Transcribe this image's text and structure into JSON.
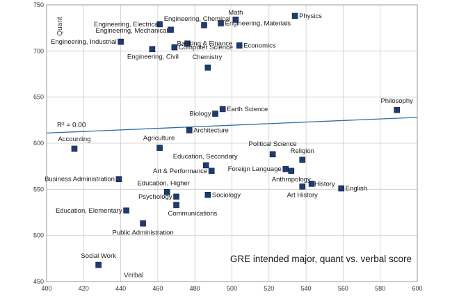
{
  "chart_data": {
    "type": "scatter",
    "title": "GRE intended major, quant vs. verbal score",
    "xlabel": "Verbal",
    "ylabel": "Quant",
    "xlim": [
      400,
      600
    ],
    "ylim": [
      450,
      750
    ],
    "xticks": [
      400,
      420,
      440,
      460,
      480,
      500,
      520,
      540,
      560,
      580,
      600
    ],
    "yticks": [
      450,
      500,
      550,
      600,
      650,
      700,
      750
    ],
    "grid": true,
    "trendline": {
      "label": "R² = 0.00",
      "y_at_xmin": 611,
      "y_at_xmax": 628
    },
    "colors": {
      "marker": "#1f3b70",
      "trend": "#2e6da4",
      "grid": "#cccccc"
    },
    "points": [
      {
        "name": "Physics",
        "x": 534,
        "y": 738
      },
      {
        "name": "Math",
        "x": 502,
        "y": 734
      },
      {
        "name": "Engineering, Chemical",
        "x": 485,
        "y": 728
      },
      {
        "name": "Engineering, Materials",
        "x": 494,
        "y": 730
      },
      {
        "name": "Engineering, Electrical",
        "x": 461,
        "y": 729
      },
      {
        "name": "Engineering, Mechanical",
        "x": 467,
        "y": 723
      },
      {
        "name": "Banking & Finance",
        "x": 476,
        "y": 708
      },
      {
        "name": "Engineering, Industrial",
        "x": 440,
        "y": 710
      },
      {
        "name": "Computer Science",
        "x": 469,
        "y": 704
      },
      {
        "name": "Economics",
        "x": 504,
        "y": 706
      },
      {
        "name": "Engineering, Civil",
        "x": 457,
        "y": 702
      },
      {
        "name": "Chemistry",
        "x": 487,
        "y": 682
      },
      {
        "name": "Philosophy",
        "x": 589,
        "y": 636
      },
      {
        "name": "Earth Science",
        "x": 495,
        "y": 637
      },
      {
        "name": "Biology",
        "x": 491,
        "y": 632
      },
      {
        "name": "Architecture",
        "x": 477,
        "y": 614
      },
      {
        "name": "Accounting",
        "x": 415,
        "y": 594
      },
      {
        "name": "Agriculture",
        "x": 461,
        "y": 595
      },
      {
        "name": "Political Science",
        "x": 522,
        "y": 588
      },
      {
        "name": "Religion",
        "x": 538,
        "y": 582
      },
      {
        "name": "Education, Secondary",
        "x": 486,
        "y": 576
      },
      {
        "name": "Art & Performance",
        "x": 489,
        "y": 570
      },
      {
        "name": "Foreign Language",
        "x": 529,
        "y": 572
      },
      {
        "name": "Business Administration",
        "x": 439,
        "y": 561
      },
      {
        "name": "Anthropology",
        "x": 532,
        "y": 570
      },
      {
        "name": "History",
        "x": 543,
        "y": 556
      },
      {
        "name": "Art History",
        "x": 538,
        "y": 553
      },
      {
        "name": "English",
        "x": 559,
        "y": 551
      },
      {
        "name": "Education, Higher",
        "x": 465,
        "y": 547
      },
      {
        "name": "Psychology",
        "x": 470,
        "y": 542
      },
      {
        "name": "Sociology",
        "x": 487,
        "y": 544
      },
      {
        "name": "Communications",
        "x": 470,
        "y": 533
      },
      {
        "name": "Education, Elementary",
        "x": 443,
        "y": 527
      },
      {
        "name": "Public Administration",
        "x": 452,
        "y": 513
      },
      {
        "name": "Social Work",
        "x": 428,
        "y": 468
      }
    ]
  }
}
